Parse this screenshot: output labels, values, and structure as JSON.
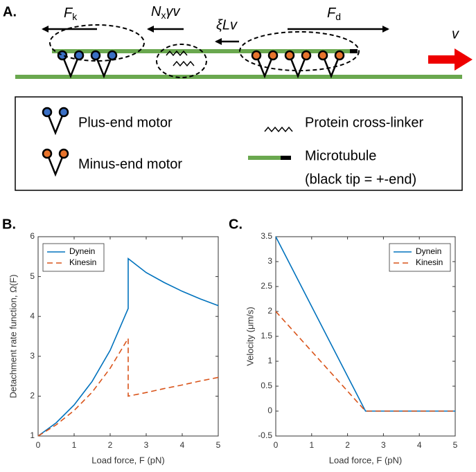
{
  "panel_a": {
    "label": "A.",
    "force_k": {
      "main": "F",
      "sub": "k"
    },
    "drag_x": {
      "main": "N",
      "sub": "x",
      "rest": "γv"
    },
    "drag_l": "ξLv",
    "force_d": {
      "main": "F",
      "sub": "d"
    },
    "velocity": "v",
    "legend": {
      "plus_motor": "Plus-end motor",
      "minus_motor": "Minus-end motor",
      "crosslinker": "Protein cross-linker",
      "microtubule": "Microtubule",
      "tip_note": "(black tip = +-end)"
    }
  },
  "chart_data": [
    {
      "type": "line",
      "panel_label": "B.",
      "xlabel": "Load force, F (pN)",
      "ylabel": "Detachment rate function, Ω(F)",
      "x": [
        0,
        0.5,
        1,
        1.5,
        2,
        2.5,
        2.5,
        3,
        3.5,
        4,
        4.5,
        5
      ],
      "series": [
        {
          "name": "Dynein",
          "color": "#0072bd",
          "linestyle": "solid",
          "values": [
            1,
            1.33,
            1.78,
            2.37,
            3.15,
            4.2,
            5.45,
            5.1,
            4.85,
            4.63,
            4.44,
            4.27
          ]
        },
        {
          "name": "Kinesin",
          "color": "#d95319",
          "linestyle": "dashed",
          "values": [
            1,
            1.28,
            1.64,
            2.1,
            2.7,
            3.45,
            2.0,
            2.09,
            2.19,
            2.28,
            2.38,
            2.47
          ]
        }
      ],
      "xlim": [
        0,
        5
      ],
      "xticks": [
        0,
        1,
        2,
        3,
        4,
        5
      ],
      "ylim": [
        1,
        6
      ],
      "yticks": [
        1,
        2,
        3,
        4,
        5,
        6
      ],
      "legend": "upper left"
    },
    {
      "type": "line",
      "panel_label": "C.",
      "xlabel": "Load force, F (pN)",
      "ylabel": "Velocity (μm/s)",
      "x": [
        0,
        2.5,
        5
      ],
      "series": [
        {
          "name": "Dynein",
          "color": "#0072bd",
          "linestyle": "solid",
          "values": [
            3.5,
            0,
            0
          ]
        },
        {
          "name": "Kinesin",
          "color": "#d95319",
          "linestyle": "dashed",
          "values": [
            2,
            0,
            0
          ]
        }
      ],
      "xlim": [
        0,
        5
      ],
      "xticks": [
        0,
        1,
        2,
        3,
        4,
        5
      ],
      "ylim": [
        -0.5,
        3.5
      ],
      "yticks": [
        -0.5,
        0,
        0.5,
        1,
        1.5,
        2,
        2.5,
        3,
        3.5
      ],
      "legend": "upper right"
    }
  ]
}
